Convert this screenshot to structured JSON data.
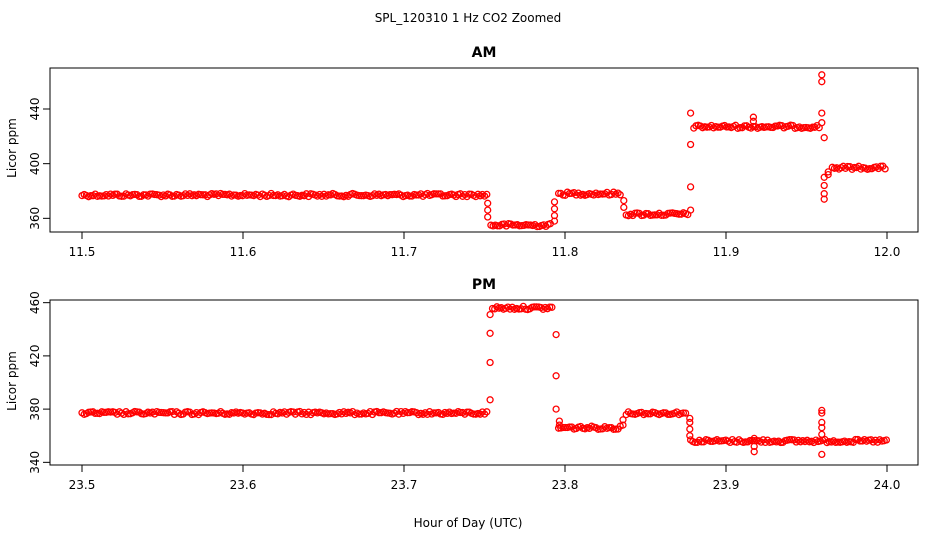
{
  "figure": {
    "title": "SPL_120310  1 Hz CO2 Zoomed",
    "xlabel": "Hour of Day (UTC)",
    "marker_color": "#ff0000"
  },
  "chart_data": [
    {
      "type": "scatter",
      "title": "AM",
      "ylabel": "Licor ppm",
      "xlim": [
        11.5,
        12.0
      ],
      "ylim": [
        350,
        470
      ],
      "xticks": [
        11.5,
        11.6,
        11.7,
        11.8,
        11.9,
        12.0
      ],
      "xtick_labels": [
        "11.5",
        "11.6",
        "11.7",
        "11.8",
        "11.9",
        "12.0"
      ],
      "yticks": [
        360,
        400,
        440
      ],
      "ytick_labels": [
        "360",
        "400",
        "440"
      ],
      "segments": [
        {
          "x0": 11.5,
          "x1": 11.752,
          "y": 377
        },
        {
          "x0": 11.754,
          "x1": 11.792,
          "y": 355
        },
        {
          "x0": 11.796,
          "x1": 11.835,
          "y": 378
        },
        {
          "x0": 11.838,
          "x1": 11.877,
          "y": 363
        },
        {
          "x0": 11.88,
          "x1": 11.958,
          "y": 427
        },
        {
          "x0": 11.966,
          "x1": 12.0,
          "y": 397
        }
      ],
      "transitions": [
        {
          "x": 11.752,
          "y": [
            371,
            366,
            361
          ]
        },
        {
          "x": 11.7935,
          "y": [
            358,
            362,
            367,
            372
          ]
        },
        {
          "x": 11.8365,
          "y": [
            373,
            368
          ]
        },
        {
          "x": 11.878,
          "y": [
            366,
            383,
            414,
            437
          ]
        },
        {
          "x": 11.917,
          "y": [
            431,
            434
          ]
        },
        {
          "x": 11.9595,
          "y": [
            437,
            460,
            465,
            430
          ]
        },
        {
          "x": 11.961,
          "y": [
            419,
            374,
            378,
            384,
            390
          ]
        },
        {
          "x": 11.9635,
          "y": [
            392,
            394
          ]
        }
      ]
    },
    {
      "type": "scatter",
      "title": "PM",
      "ylabel": "Licor ppm",
      "xlim": [
        23.5,
        24.0
      ],
      "ylim": [
        338,
        462
      ],
      "xticks": [
        23.5,
        23.6,
        23.7,
        23.8,
        23.9,
        24.0
      ],
      "xtick_labels": [
        "23.5",
        "23.6",
        "23.7",
        "23.8",
        "23.9",
        "24.0"
      ],
      "yticks": [
        340,
        380,
        420,
        460
      ],
      "ytick_labels": [
        "340",
        "380",
        "420",
        "460"
      ],
      "segments": [
        {
          "x0": 23.5,
          "x1": 23.752,
          "y": 377
        },
        {
          "x0": 23.755,
          "x1": 23.793,
          "y": 456
        },
        {
          "x0": 23.796,
          "x1": 23.835,
          "y": 366
        },
        {
          "x0": 23.838,
          "x1": 23.876,
          "y": 377
        },
        {
          "x0": 23.878,
          "x1": 24.0,
          "y": 356
        }
      ],
      "transitions": [
        {
          "x": 23.7535,
          "y": [
            387,
            415,
            437,
            451
          ]
        },
        {
          "x": 23.7945,
          "y": [
            436,
            405,
            380
          ]
        },
        {
          "x": 23.7965,
          "y": [
            371,
            368
          ]
        },
        {
          "x": 23.836,
          "y": [
            368,
            372
          ]
        },
        {
          "x": 23.8775,
          "y": [
            373,
            370,
            365,
            360
          ]
        },
        {
          "x": 23.9175,
          "y": [
            352,
            358,
            348
          ]
        },
        {
          "x": 23.9595,
          "y": [
            379,
            377,
            370,
            366,
            361,
            346
          ]
        }
      ]
    }
  ]
}
